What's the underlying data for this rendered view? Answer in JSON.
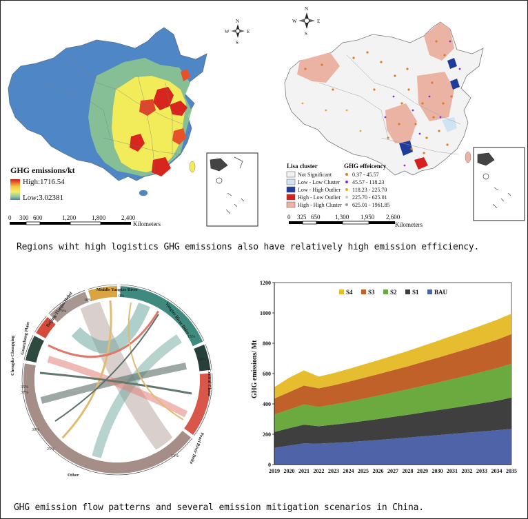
{
  "map1": {
    "legend_title": "GHG emissions/kt",
    "legend_high": "High:1716.54",
    "legend_low": "Low:3.02381",
    "scale_ticks": [
      "0",
      "300",
      "600",
      "1,200",
      "1,800",
      "2,400"
    ],
    "scale_unit": "Kilometers",
    "compass": {
      "n": "N",
      "s": "S",
      "e": "E",
      "w": "W"
    }
  },
  "map2": {
    "lisa_title": "Lisa cluster",
    "lisa_items": [
      {
        "label": "Not Significant",
        "color": "#f2f2f2"
      },
      {
        "label": "Low - Low Cluster",
        "color": "#cfe3f3"
      },
      {
        "label": "Low - High Outlier",
        "color": "#1f3b9c"
      },
      {
        "label": "High - Low Outlier",
        "color": "#d62020"
      },
      {
        "label": "High - High Cluster",
        "color": "#eab3a3"
      }
    ],
    "eff_title": "GHG effeicency",
    "eff_items": [
      {
        "label": "0.37 - 45.57",
        "color": "#e07b1e"
      },
      {
        "label": "45.57 - 118.23",
        "color": "#8a2be2"
      },
      {
        "label": "118.23 - 225.70",
        "color": "#f0a030"
      },
      {
        "label": "225.70 - 625.01",
        "color": "#c8c8c8"
      },
      {
        "label": "625.01 - 1961.85",
        "color": "#9a9a9a"
      }
    ],
    "scale_ticks": [
      "0",
      "325",
      "650",
      "1,300",
      "1,950",
      "2,600"
    ],
    "scale_unit": "Kilometers",
    "compass": {
      "n": "N",
      "s": "S",
      "e": "E",
      "w": "W"
    }
  },
  "caption1": "Regions wiht high logistics GHG emissions also have relatively high emission efficiency.",
  "chord": {
    "regions": [
      {
        "name": "Middle Yangtze River",
        "color": "#d9a441"
      },
      {
        "name": "Yangtze River Delta",
        "color": "#3e8a7e"
      },
      {
        "name": "Central China",
        "color": "#263f38"
      },
      {
        "name": "Pearl River Delta",
        "color": "#d9574a"
      },
      {
        "name": "Other",
        "color": "#a48e87"
      },
      {
        "name": "Chengdu-Chongqing",
        "color": "#2e4a3e"
      },
      {
        "name": "Guanzhong Plain",
        "color": "#d64a3a"
      },
      {
        "name": "Beijing-Tianjin-Hebei",
        "color": "#a89690"
      }
    ],
    "tick_labels": [
      "0%",
      "5%",
      "10%",
      "15%",
      "20%",
      "25%",
      "30%",
      "35%",
      "37%",
      "13%"
    ]
  },
  "chart_data": {
    "type": "area",
    "stacked": true,
    "x": [
      2019,
      2020,
      2021,
      2022,
      2023,
      2024,
      2025,
      2026,
      2027,
      2028,
      2029,
      2030,
      2031,
      2032,
      2033,
      2034,
      2035
    ],
    "series": [
      {
        "name": "BAU",
        "color": "#4e63a8",
        "values": [
          110,
          125,
          140,
          138,
          143,
          148,
          155,
          162,
          170,
          178,
          186,
          194,
          202,
          210,
          218,
          226,
          235
        ]
      },
      {
        "name": "S1",
        "color": "#3f3f3f",
        "values": [
          105,
          115,
          123,
          115,
          120,
          126,
          132,
          138,
          144,
          150,
          157,
          164,
          171,
          178,
          186,
          194,
          207
        ]
      },
      {
        "name": "S2",
        "color": "#6aaa3e",
        "values": [
          115,
          123,
          133,
          127,
          133,
          140,
          147,
          154,
          161,
          168,
          175,
          182,
          190,
          198,
          206,
          215,
          223
        ]
      },
      {
        "name": "S3",
        "color": "#c0612a",
        "values": [
          105,
          115,
          125,
          123,
          127,
          132,
          137,
          142,
          147,
          152,
          158,
          164,
          170,
          176,
          182,
          188,
          195
        ]
      },
      {
        "name": "S4",
        "color": "#e6bd2e",
        "values": [
          75,
          95,
          100,
          77,
          80,
          84,
          88,
          92,
          96,
          101,
          106,
          111,
          116,
          121,
          126,
          131,
          135
        ]
      }
    ],
    "legend_order": [
      "S4",
      "S3",
      "S2",
      "S1",
      "BAU"
    ],
    "ylabel": "GHG emissions/ Mt",
    "xlabel": "",
    "ylim": [
      0,
      1200
    ],
    "yticks": [
      0,
      200,
      400,
      600,
      800,
      1000,
      1200
    ]
  },
  "caption2": "GHG emission flow patterns and several emission mitigation scenarios in China."
}
